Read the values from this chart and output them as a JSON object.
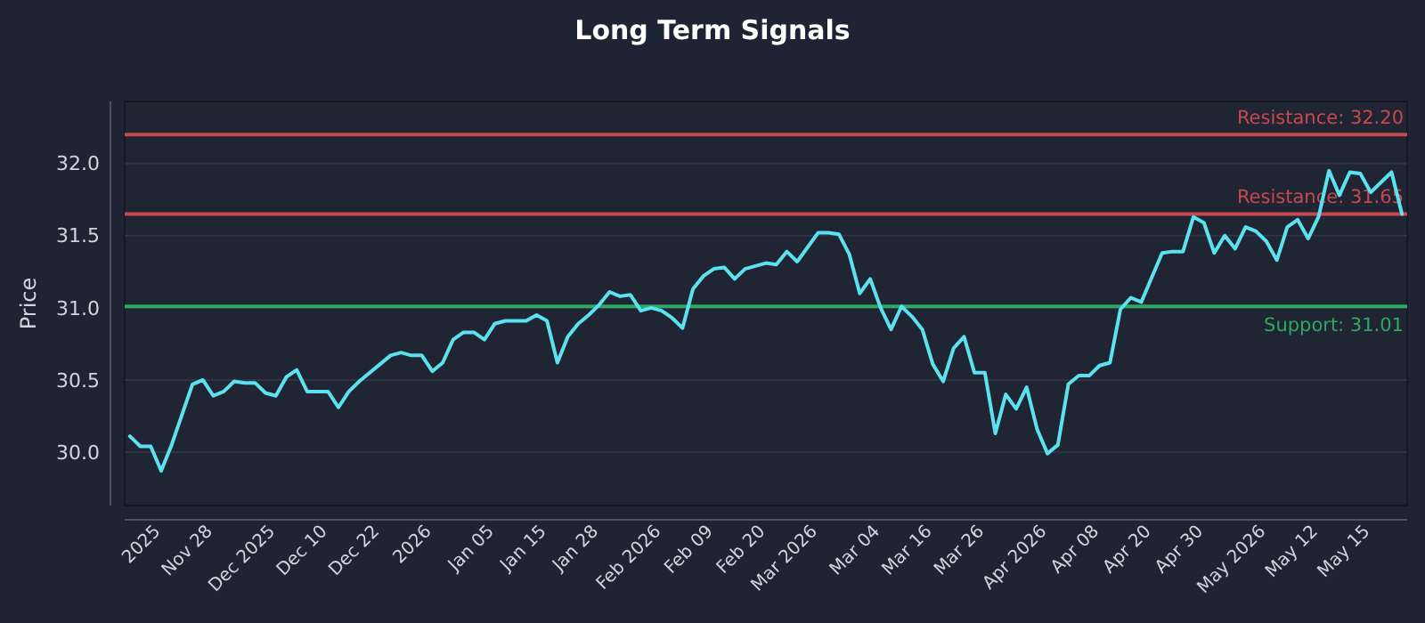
{
  "chart_data": {
    "type": "line",
    "title": "Long Term Signals",
    "ylabel": "Price",
    "categories": [
      null,
      null,
      null,
      "2025",
      null,
      null,
      null,
      null,
      "Nov 28",
      null,
      null,
      null,
      null,
      null,
      "Dec 2025",
      null,
      null,
      null,
      null,
      "Dec 10",
      null,
      null,
      null,
      null,
      "Dec 22",
      null,
      null,
      null,
      null,
      "2026",
      null,
      null,
      null,
      null,
      null,
      "Jan 05",
      null,
      null,
      null,
      null,
      "Jan 15",
      null,
      null,
      null,
      null,
      "Jan 28",
      null,
      null,
      null,
      null,
      null,
      "Feb 2026",
      null,
      null,
      null,
      null,
      "Feb 09",
      null,
      null,
      null,
      null,
      "Feb 20",
      null,
      null,
      null,
      null,
      "Mar 2026",
      null,
      null,
      null,
      null,
      null,
      "Mar 04",
      null,
      null,
      null,
      null,
      "Mar 16",
      null,
      null,
      null,
      null,
      "Mar 26",
      null,
      null,
      null,
      null,
      null,
      "Apr 2026",
      null,
      null,
      null,
      null,
      "Apr 08",
      null,
      null,
      null,
      null,
      "Apr 20",
      null,
      null,
      null,
      null,
      "Apr 30",
      null,
      null,
      null,
      null,
      null,
      "May 2026",
      null,
      null,
      null,
      null,
      "May 12",
      null,
      null,
      null,
      null,
      "May 15",
      null,
      null,
      null
    ],
    "series": [
      {
        "color": "#5ce1f0",
        "values": [
          30.11,
          30.04,
          30.04,
          29.87,
          30.05,
          30.26,
          30.47,
          30.5,
          30.39,
          30.42,
          30.49,
          30.48,
          30.48,
          30.41,
          30.39,
          30.52,
          30.57,
          30.42,
          30.42,
          30.42,
          30.31,
          30.42,
          30.49,
          30.55,
          30.61,
          30.67,
          30.69,
          30.67,
          30.67,
          30.56,
          30.62,
          30.78,
          30.83,
          30.83,
          30.78,
          30.89,
          30.91,
          30.91,
          30.91,
          30.95,
          30.91,
          30.62,
          30.8,
          30.89,
          30.95,
          31.02,
          31.11,
          31.08,
          31.09,
          30.98,
          31.0,
          30.98,
          30.93,
          30.86,
          31.13,
          31.22,
          31.27,
          31.28,
          31.2,
          31.27,
          31.29,
          31.31,
          31.3,
          31.39,
          31.32,
          31.42,
          31.52,
          31.52,
          31.51,
          31.37,
          31.1,
          31.2,
          31.0,
          30.85,
          31.01,
          30.94,
          30.85,
          30.61,
          30.49,
          30.72,
          30.8,
          30.55,
          30.55,
          30.13,
          30.4,
          30.3,
          30.45,
          30.16,
          29.99,
          30.05,
          30.47,
          30.53,
          30.53,
          30.6,
          30.62,
          30.99,
          31.07,
          31.04,
          31.21,
          31.38,
          31.39,
          31.39,
          31.63,
          31.59,
          31.38,
          31.5,
          31.41,
          31.56,
          31.53,
          31.46,
          31.33,
          31.56,
          31.61,
          31.48,
          31.63,
          31.95,
          31.78,
          31.94,
          31.93,
          31.8,
          31.87,
          31.94,
          31.65
        ]
      }
    ],
    "ylim": [
      29.63,
      32.43
    ],
    "yticks": [
      {
        "value": 30,
        "label": "30.0"
      },
      {
        "value": 30.5,
        "label": "30.5"
      },
      {
        "value": 31,
        "label": "31.0"
      },
      {
        "value": 31.5,
        "label": "31.5"
      },
      {
        "value": 32,
        "label": "32.0"
      }
    ],
    "grid": "y",
    "marker": "none",
    "line_style": "solid",
    "ref_lines": [
      {
        "axis": "y",
        "value": 32.2,
        "label": "Resistance: 32.20",
        "color": "#c8484f"
      },
      {
        "axis": "y",
        "value": 31.65,
        "label": "Resistance: 31.65",
        "color": "#c8484f"
      },
      {
        "axis": "y",
        "value": 31.01,
        "label": "Support: 31.01",
        "color": "#2ea862"
      }
    ]
  }
}
